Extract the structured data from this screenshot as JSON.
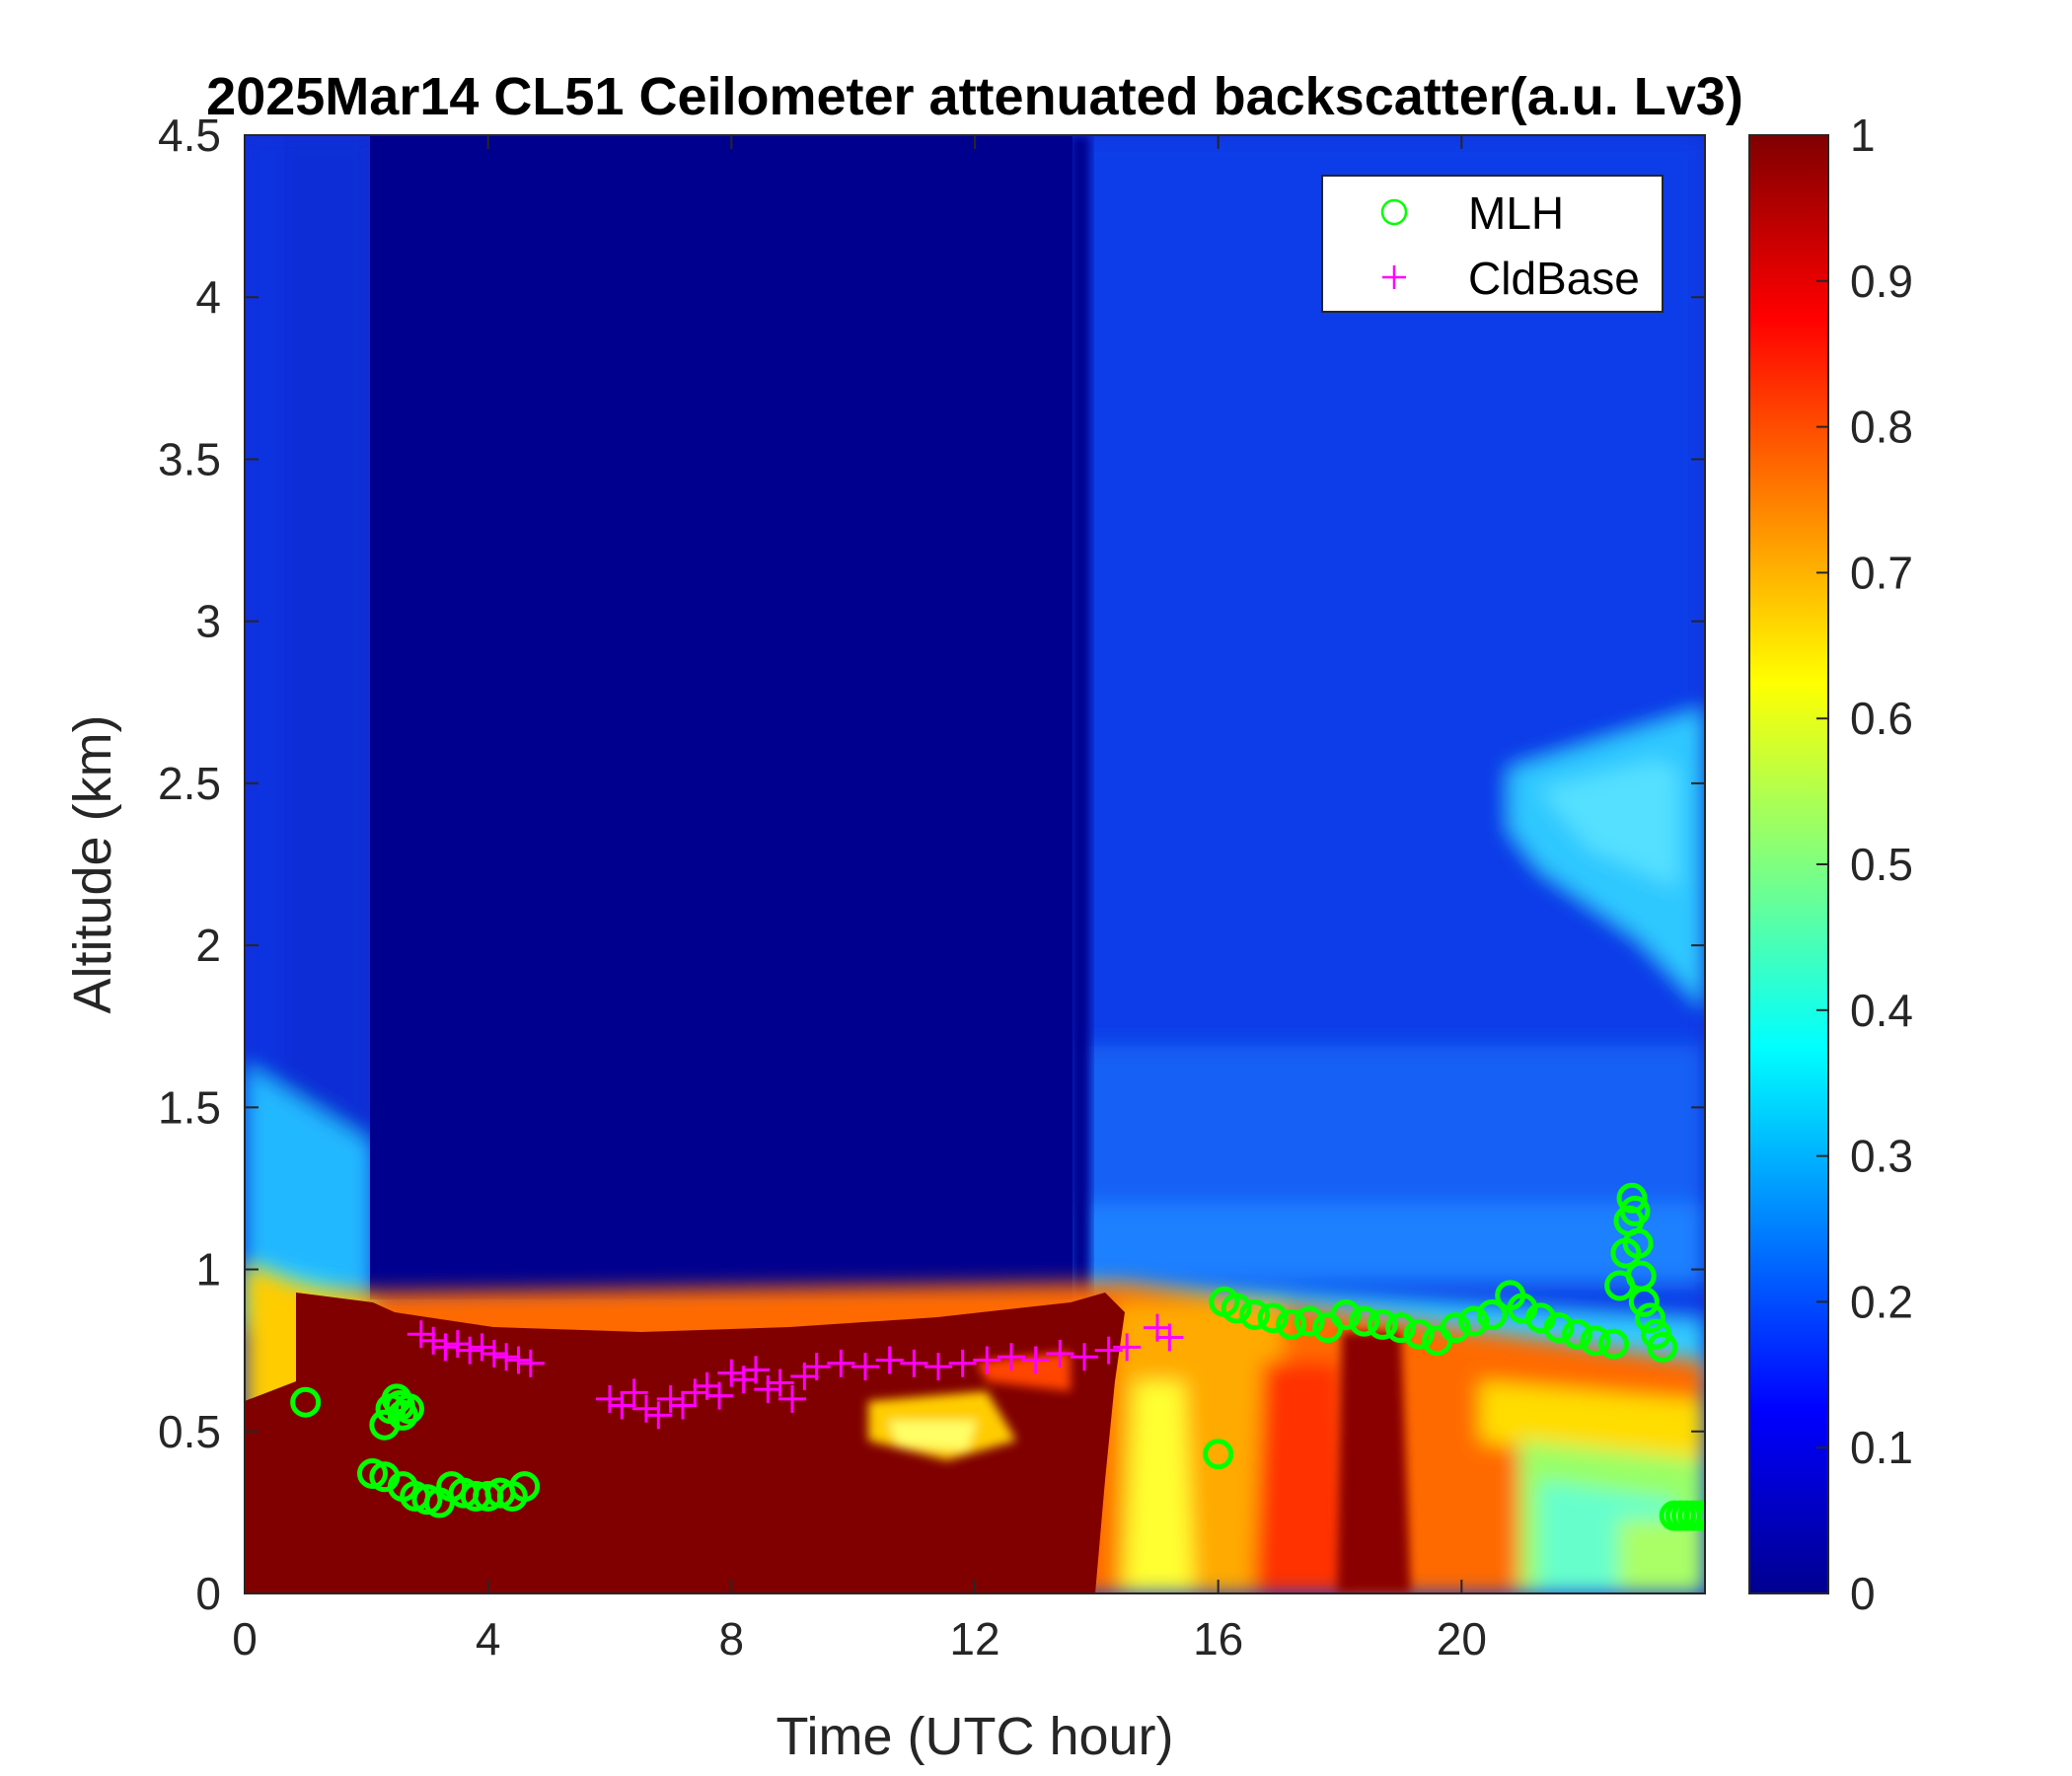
{
  "chart_data": {
    "type": "heatmap",
    "title": "2025Mar14 CL51 Ceilometer attenuated backscatter(a.u. Lv3)",
    "xlabel": "Time (UTC hour)",
    "ylabel": "Altitude (km)",
    "xlim": [
      0,
      24
    ],
    "ylim": [
      0,
      4.5
    ],
    "xticks": [
      0,
      4,
      8,
      12,
      16,
      20
    ],
    "xtick_labels": [
      "0",
      "4",
      "8",
      "12",
      "16",
      "20"
    ],
    "yticks": [
      0,
      0.5,
      1,
      1.5,
      2,
      2.5,
      3,
      3.5,
      4,
      4.5
    ],
    "ytick_labels": [
      "0",
      "0.5",
      "1",
      "1.5",
      "2",
      "2.5",
      "3",
      "3.5",
      "4",
      "4.5"
    ],
    "colorbar": {
      "colormap": "jet",
      "limits": [
        0,
        1
      ],
      "ticks": [
        0,
        0.1,
        0.2,
        0.3,
        0.4,
        0.5,
        0.6,
        0.7,
        0.8,
        0.9,
        1
      ],
      "tick_labels": [
        "0",
        "0.1",
        "0.2",
        "0.3",
        "0.4",
        "0.5",
        "0.6",
        "0.7",
        "0.8",
        "0.9",
        "1"
      ]
    },
    "legend": {
      "placement": "top-right",
      "entries": [
        {
          "label": "MLH",
          "marker": "circle",
          "color": "#00ff00"
        },
        {
          "label": "CldBase",
          "marker": "plus",
          "color": "#ff00ff"
        }
      ]
    },
    "series": [
      {
        "name": "MLH",
        "marker": "circle",
        "color": "#00ff00",
        "x": [
          1.0,
          2.3,
          2.4,
          2.5,
          2.55,
          2.6,
          2.7,
          2.1,
          2.3,
          2.6,
          2.8,
          3.0,
          3.2,
          3.4,
          3.6,
          3.8,
          4.0,
          4.2,
          4.4,
          4.6,
          16.0,
          16.1,
          16.3,
          16.6,
          16.9,
          17.2,
          17.5,
          17.8,
          18.1,
          18.4,
          18.7,
          19.0,
          19.3,
          19.6,
          19.9,
          20.2,
          20.5,
          20.8,
          21.0,
          21.3,
          21.6,
          21.9,
          22.2,
          22.5,
          22.6,
          22.7,
          22.75,
          22.8,
          22.85,
          22.9,
          22.95,
          23.0,
          23.1,
          23.2,
          23.3,
          23.5,
          23.6,
          23.7,
          23.8,
          23.9
        ],
        "y": [
          0.59,
          0.52,
          0.57,
          0.6,
          0.58,
          0.55,
          0.57,
          0.37,
          0.36,
          0.33,
          0.3,
          0.29,
          0.28,
          0.33,
          0.31,
          0.3,
          0.3,
          0.31,
          0.3,
          0.33,
          0.43,
          0.9,
          0.88,
          0.86,
          0.85,
          0.83,
          0.84,
          0.82,
          0.86,
          0.84,
          0.83,
          0.82,
          0.8,
          0.78,
          0.82,
          0.84,
          0.86,
          0.92,
          0.88,
          0.85,
          0.82,
          0.8,
          0.78,
          0.77,
          0.95,
          1.05,
          1.15,
          1.22,
          1.18,
          1.08,
          0.98,
          0.9,
          0.85,
          0.8,
          0.76,
          0.24,
          0.24,
          0.24,
          0.24,
          0.24
        ]
      },
      {
        "name": "CldBase",
        "marker": "plus",
        "color": "#ff00ff",
        "x": [
          2.9,
          3.1,
          3.3,
          3.5,
          3.7,
          3.9,
          4.1,
          4.3,
          4.5,
          4.7,
          6.0,
          6.2,
          6.4,
          6.6,
          6.8,
          7.0,
          7.2,
          7.4,
          7.6,
          7.8,
          8.0,
          8.2,
          8.4,
          8.6,
          8.8,
          9.0,
          9.2,
          9.4,
          9.8,
          10.2,
          10.6,
          11.0,
          11.4,
          11.8,
          12.2,
          12.6,
          13.0,
          13.4,
          13.8,
          14.2,
          14.5,
          15.0,
          15.2
        ],
        "y": [
          0.8,
          0.78,
          0.76,
          0.77,
          0.75,
          0.76,
          0.74,
          0.73,
          0.72,
          0.71,
          0.6,
          0.58,
          0.62,
          0.57,
          0.55,
          0.6,
          0.58,
          0.62,
          0.64,
          0.61,
          0.68,
          0.66,
          0.69,
          0.63,
          0.65,
          0.6,
          0.67,
          0.7,
          0.71,
          0.7,
          0.72,
          0.71,
          0.7,
          0.71,
          0.72,
          0.73,
          0.72,
          0.74,
          0.73,
          0.75,
          0.76,
          0.82,
          0.79
        ]
      }
    ]
  }
}
